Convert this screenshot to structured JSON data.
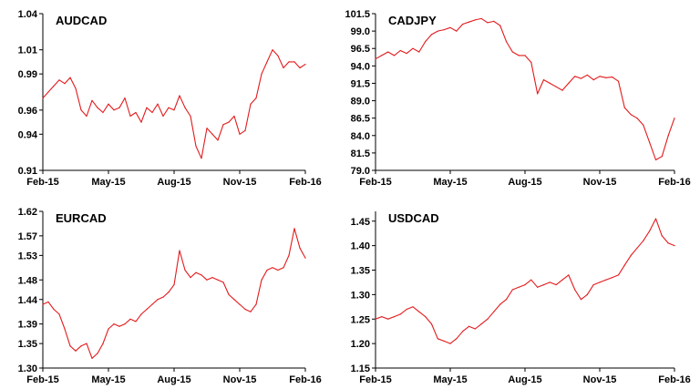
{
  "colors": {
    "series": "#e31a1c",
    "axis": "#000000",
    "background": "#ffffff"
  },
  "chart_data": [
    {
      "type": "line",
      "title": "AUDCAD",
      "xlabel": "",
      "ylabel": "",
      "x_tick_labels": [
        "Feb-15",
        "May-15",
        "Aug-15",
        "Nov-15",
        "Feb-16"
      ],
      "x_range_months": [
        0,
        12
      ],
      "y_tick_labels": [
        "0.91",
        "0.94",
        "0.96",
        "0.99",
        "1.01",
        "1.04"
      ],
      "ylim": [
        0.91,
        1.04
      ],
      "grid": false,
      "series": [
        {
          "name": "AUDCAD",
          "x": [
            0,
            0.25,
            0.5,
            0.75,
            1,
            1.25,
            1.5,
            1.75,
            2,
            2.25,
            2.5,
            2.75,
            3,
            3.25,
            3.5,
            3.75,
            4,
            4.25,
            4.5,
            4.75,
            5,
            5.25,
            5.5,
            5.75,
            6,
            6.25,
            6.5,
            6.75,
            7,
            7.25,
            7.5,
            7.75,
            8,
            8.25,
            8.5,
            8.75,
            9,
            9.25,
            9.5,
            9.75,
            10,
            10.25,
            10.5,
            10.75,
            11,
            11.25,
            11.5,
            11.75,
            12
          ],
          "values": [
            0.97,
            0.975,
            0.98,
            0.985,
            0.982,
            0.987,
            0.978,
            0.96,
            0.955,
            0.968,
            0.962,
            0.958,
            0.965,
            0.96,
            0.962,
            0.97,
            0.955,
            0.958,
            0.95,
            0.962,
            0.958,
            0.965,
            0.955,
            0.962,
            0.96,
            0.972,
            0.962,
            0.955,
            0.93,
            0.92,
            0.945,
            0.94,
            0.935,
            0.948,
            0.95,
            0.955,
            0.94,
            0.943,
            0.965,
            0.97,
            0.99,
            1.0,
            1.01,
            1.005,
            0.995,
            1.0,
            1.0,
            0.995,
            0.998
          ]
        }
      ]
    },
    {
      "type": "line",
      "title": "CADJPY",
      "xlabel": "",
      "ylabel": "",
      "x_tick_labels": [
        "Feb-15",
        "May-15",
        "Aug-15",
        "Nov-15",
        "Feb-16"
      ],
      "x_range_months": [
        0,
        12
      ],
      "y_tick_labels": [
        "79.0",
        "81.5",
        "84.0",
        "86.5",
        "89.0",
        "91.5",
        "94.0",
        "96.5",
        "99.0",
        "101.5"
      ],
      "ylim": [
        79.0,
        101.5
      ],
      "grid": false,
      "series": [
        {
          "name": "CADJPY",
          "x": [
            0,
            0.25,
            0.5,
            0.75,
            1,
            1.25,
            1.5,
            1.75,
            2,
            2.25,
            2.5,
            2.75,
            3,
            3.25,
            3.5,
            3.75,
            4,
            4.25,
            4.5,
            4.75,
            5,
            5.25,
            5.5,
            5.75,
            6,
            6.25,
            6.5,
            6.75,
            7,
            7.25,
            7.5,
            7.75,
            8,
            8.25,
            8.5,
            8.75,
            9,
            9.25,
            9.5,
            9.75,
            10,
            10.25,
            10.5,
            10.75,
            11,
            11.25,
            11.5,
            11.75,
            12
          ],
          "values": [
            95,
            95.5,
            96,
            95.5,
            96.2,
            95.8,
            96.5,
            96,
            97.5,
            98.5,
            99,
            99.2,
            99.5,
            99,
            100,
            100.3,
            100.6,
            100.8,
            100.2,
            100.4,
            99.8,
            97.5,
            96,
            95.5,
            95.5,
            94.5,
            90,
            92,
            91.5,
            91,
            90.5,
            91.5,
            92.5,
            92.2,
            92.7,
            92,
            92.5,
            92.3,
            92.4,
            91.8,
            88,
            87,
            86.5,
            85.5,
            83,
            80.5,
            81,
            84,
            86.5
          ]
        }
      ]
    },
    {
      "type": "line",
      "title": "EURCAD",
      "xlabel": "",
      "ylabel": "",
      "x_tick_labels": [
        "Feb-15",
        "May-15",
        "Aug-15",
        "Nov-15",
        "Feb-16"
      ],
      "x_range_months": [
        0,
        12
      ],
      "y_tick_labels": [
        "1.30",
        "1.35",
        "1.39",
        "1.44",
        "1.48",
        "1.53",
        "1.57",
        "1.62"
      ],
      "ylim": [
        1.3,
        1.62
      ],
      "grid": false,
      "series": [
        {
          "name": "EURCAD",
          "x": [
            0,
            0.25,
            0.5,
            0.75,
            1,
            1.25,
            1.5,
            1.75,
            2,
            2.25,
            2.5,
            2.75,
            3,
            3.25,
            3.5,
            3.75,
            4,
            4.25,
            4.5,
            4.75,
            5,
            5.25,
            5.5,
            5.75,
            6,
            6.25,
            6.5,
            6.75,
            7,
            7.25,
            7.5,
            7.75,
            8,
            8.25,
            8.5,
            8.75,
            9,
            9.25,
            9.5,
            9.75,
            10,
            10.25,
            10.5,
            10.75,
            11,
            11.25,
            11.5,
            11.75,
            12
          ],
          "values": [
            1.43,
            1.435,
            1.42,
            1.41,
            1.38,
            1.345,
            1.335,
            1.345,
            1.35,
            1.32,
            1.33,
            1.35,
            1.38,
            1.39,
            1.385,
            1.39,
            1.4,
            1.395,
            1.41,
            1.42,
            1.43,
            1.44,
            1.445,
            1.455,
            1.47,
            1.54,
            1.5,
            1.485,
            1.495,
            1.49,
            1.48,
            1.485,
            1.48,
            1.475,
            1.45,
            1.44,
            1.43,
            1.42,
            1.415,
            1.43,
            1.48,
            1.5,
            1.505,
            1.5,
            1.505,
            1.53,
            1.585,
            1.545,
            1.525
          ]
        }
      ]
    },
    {
      "type": "line",
      "title": "USDCAD",
      "xlabel": "",
      "ylabel": "",
      "x_tick_labels": [
        "Feb-15",
        "May-15",
        "Aug-15",
        "Nov-15",
        "Feb-16"
      ],
      "x_range_months": [
        0,
        12
      ],
      "y_tick_labels": [
        "1.15",
        "1.20",
        "1.25",
        "1.30",
        "1.35",
        "1.40",
        "1.45"
      ],
      "ylim": [
        1.15,
        1.47
      ],
      "grid": false,
      "series": [
        {
          "name": "USDCAD",
          "x": [
            0,
            0.25,
            0.5,
            0.75,
            1,
            1.25,
            1.5,
            1.75,
            2,
            2.25,
            2.5,
            2.75,
            3,
            3.25,
            3.5,
            3.75,
            4,
            4.25,
            4.5,
            4.75,
            5,
            5.25,
            5.5,
            5.75,
            6,
            6.25,
            6.5,
            6.75,
            7,
            7.25,
            7.5,
            7.75,
            8,
            8.25,
            8.5,
            8.75,
            9,
            9.25,
            9.5,
            9.75,
            10,
            10.25,
            10.5,
            10.75,
            11,
            11.25,
            11.5,
            11.75,
            12
          ],
          "values": [
            1.25,
            1.255,
            1.25,
            1.255,
            1.26,
            1.27,
            1.275,
            1.265,
            1.255,
            1.24,
            1.21,
            1.205,
            1.2,
            1.21,
            1.225,
            1.235,
            1.23,
            1.24,
            1.25,
            1.265,
            1.28,
            1.29,
            1.31,
            1.315,
            1.32,
            1.33,
            1.315,
            1.32,
            1.325,
            1.32,
            1.33,
            1.34,
            1.31,
            1.29,
            1.3,
            1.32,
            1.325,
            1.33,
            1.335,
            1.34,
            1.36,
            1.38,
            1.395,
            1.41,
            1.43,
            1.455,
            1.42,
            1.405,
            1.4
          ]
        }
      ]
    }
  ]
}
